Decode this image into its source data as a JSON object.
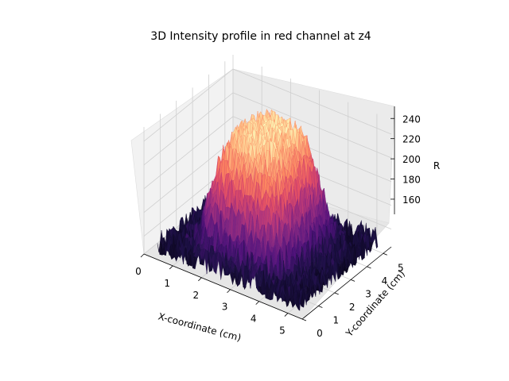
{
  "chart_data": {
    "type": "surface3d",
    "title": "3D Intensity profile in red channel at z4",
    "xlabel": "X-coordinate (cm)",
    "ylabel": "Y-coordinate (cm)",
    "zlabel": "R",
    "xlim": [
      0,
      5.5
    ],
    "ylim": [
      0,
      5.5
    ],
    "zlim": [
      145,
      252
    ],
    "x_ticks": [
      "0",
      "1",
      "2",
      "3",
      "4",
      "5"
    ],
    "y_ticks": [
      "0",
      "1",
      "2",
      "3",
      "4",
      "5"
    ],
    "z_ticks": [
      "160",
      "180",
      "200",
      "220",
      "240"
    ],
    "colormap": "magma",
    "grid": true,
    "surface": {
      "background_level": 150,
      "plateau_level": 245,
      "plateau_x_range": [
        1.5,
        4.0
      ],
      "plateau_y_range": [
        1.0,
        4.2
      ],
      "noise_amplitude": 12
    }
  }
}
